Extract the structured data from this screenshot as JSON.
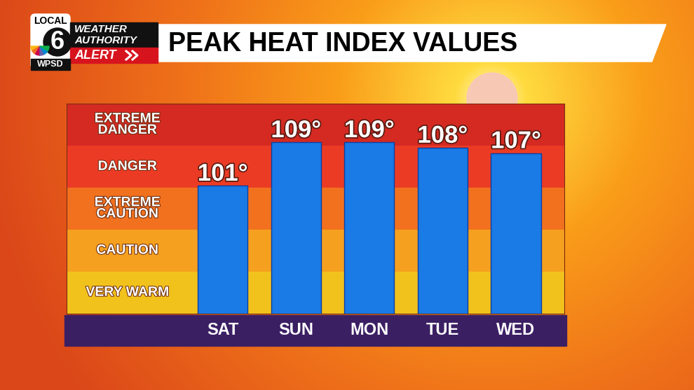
{
  "chart_data": {
    "type": "bar",
    "title": "PEAK HEAT INDEX VALUES",
    "annotations": [
      "LOCAL",
      "6",
      "WPSD",
      "WEATHER",
      "AUTHORITY",
      "ALERT"
    ],
    "categories": [
      "SAT",
      "SUN",
      "MON",
      "TUE",
      "WED"
    ],
    "values": [
      101,
      109,
      109,
      108,
      107
    ],
    "value_labels": [
      "101°",
      "109°",
      "109°",
      "108°",
      "107°"
    ],
    "color": "#1a7ae6",
    "ylim": [
      77.4,
      116.1
    ],
    "bands": [
      {
        "label": "VERY WARM",
        "from": 77.4,
        "to": 85.1,
        "color": "#f2c21c"
      },
      {
        "label": "CAUTION",
        "from": 85.1,
        "to": 92.9,
        "color": "#f5a01f"
      },
      {
        "label": "EXTREME\nCAUTION",
        "from": 92.9,
        "to": 100.6,
        "color": "#f2711f"
      },
      {
        "label": "DANGER",
        "from": 100.6,
        "to": 108.3,
        "color": "#ec3b25"
      },
      {
        "label": "EXTREME\nDANGER",
        "from": 108.3,
        "to": 116.1,
        "color": "#d42a22"
      }
    ],
    "data_labels": true,
    "tick_labels": "x"
  }
}
